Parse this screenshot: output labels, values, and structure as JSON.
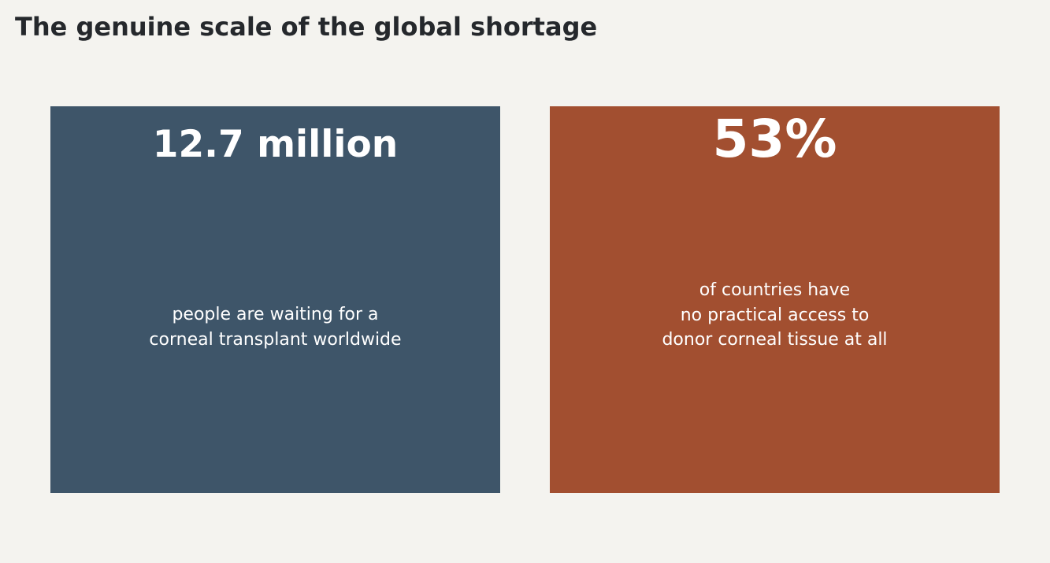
{
  "title": "The genuine scale of the global shortage",
  "colors": {
    "background": "#f4f3ef",
    "title_text": "#25282c",
    "card_left_bg": "#3e5569",
    "card_right_bg": "#a24f30",
    "card_text": "#ffffff"
  },
  "cards": [
    {
      "value": "12.7 million",
      "caption_lines": [
        "people are waiting for a",
        "corneal transplant worldwide"
      ]
    },
    {
      "value": "53%",
      "caption_lines": [
        "of countries have",
        "no practical access to",
        "donor corneal tissue at all"
      ]
    }
  ]
}
